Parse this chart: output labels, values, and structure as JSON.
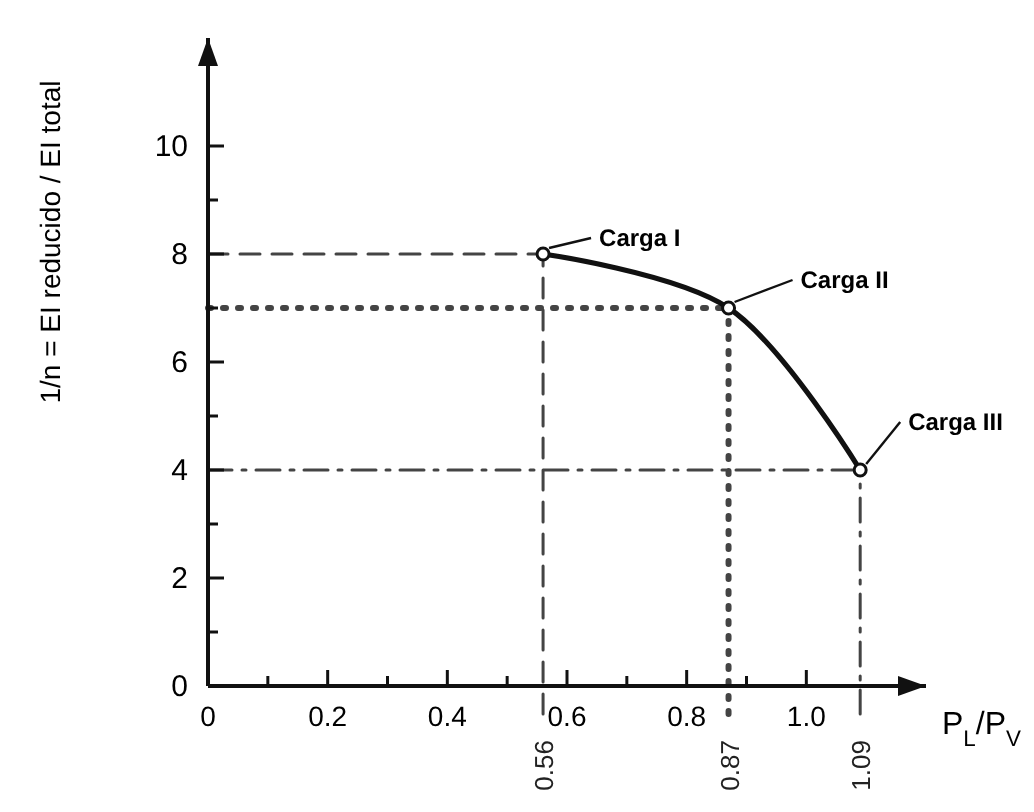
{
  "chart_data": {
    "type": "line",
    "ylabel": "1/n = EI reducido / EI total",
    "xlabel": "P$_{L}$/P$_{V}$",
    "x": [
      0.56,
      0.87,
      1.09
    ],
    "series": [
      {
        "color": "#111111",
        "values": [
          8,
          7,
          4
        ]
      }
    ],
    "marker": "circle",
    "line_style": "solid",
    "grid": false,
    "xlim": [
      0,
      1.2
    ],
    "ylim": [
      0,
      12
    ],
    "xticks": [
      0,
      {
        "value": 0.1,
        "label": null
      },
      0.2,
      {
        "value": 0.3,
        "label": null
      },
      0.4,
      {
        "value": 0.5,
        "label": null
      },
      0.6,
      {
        "value": 0.7,
        "label": null
      },
      0.8,
      {
        "value": 0.9,
        "label": null
      },
      "1.0"
    ],
    "yticks": [
      0,
      {
        "value": 1,
        "label": null
      },
      2,
      {
        "value": 3,
        "label": null
      },
      4,
      {
        "value": 5,
        "label": null
      },
      6,
      {
        "value": 7,
        "label": null
      },
      8,
      {
        "value": 9,
        "label": null
      },
      10
    ],
    "ref_lines": [
      {
        "axis": "x",
        "value": 0.56,
        "label": "0.56",
        "line_style": "dashed"
      },
      {
        "axis": "x",
        "value": 0.87,
        "label": "0.87",
        "line_style": "dotted"
      },
      {
        "axis": "x",
        "value": 1.09,
        "label": "1.09",
        "line_style": "dashdot"
      },
      {
        "axis": "y",
        "value": 8,
        "label": null,
        "line_style": "dashed"
      },
      {
        "axis": "y",
        "value": 7,
        "label": null,
        "line_style": "dotted"
      },
      {
        "axis": "y",
        "value": 4,
        "label": null,
        "line_style": "dashdot"
      }
    ],
    "annotations": [
      {
        "text": "Carga I",
        "x": 0.56,
        "y": 8
      },
      {
        "text": "Carga II",
        "x": 0.87,
        "y": 7
      },
      {
        "text": "Carga III",
        "x": 1.09,
        "y": 4
      }
    ]
  }
}
